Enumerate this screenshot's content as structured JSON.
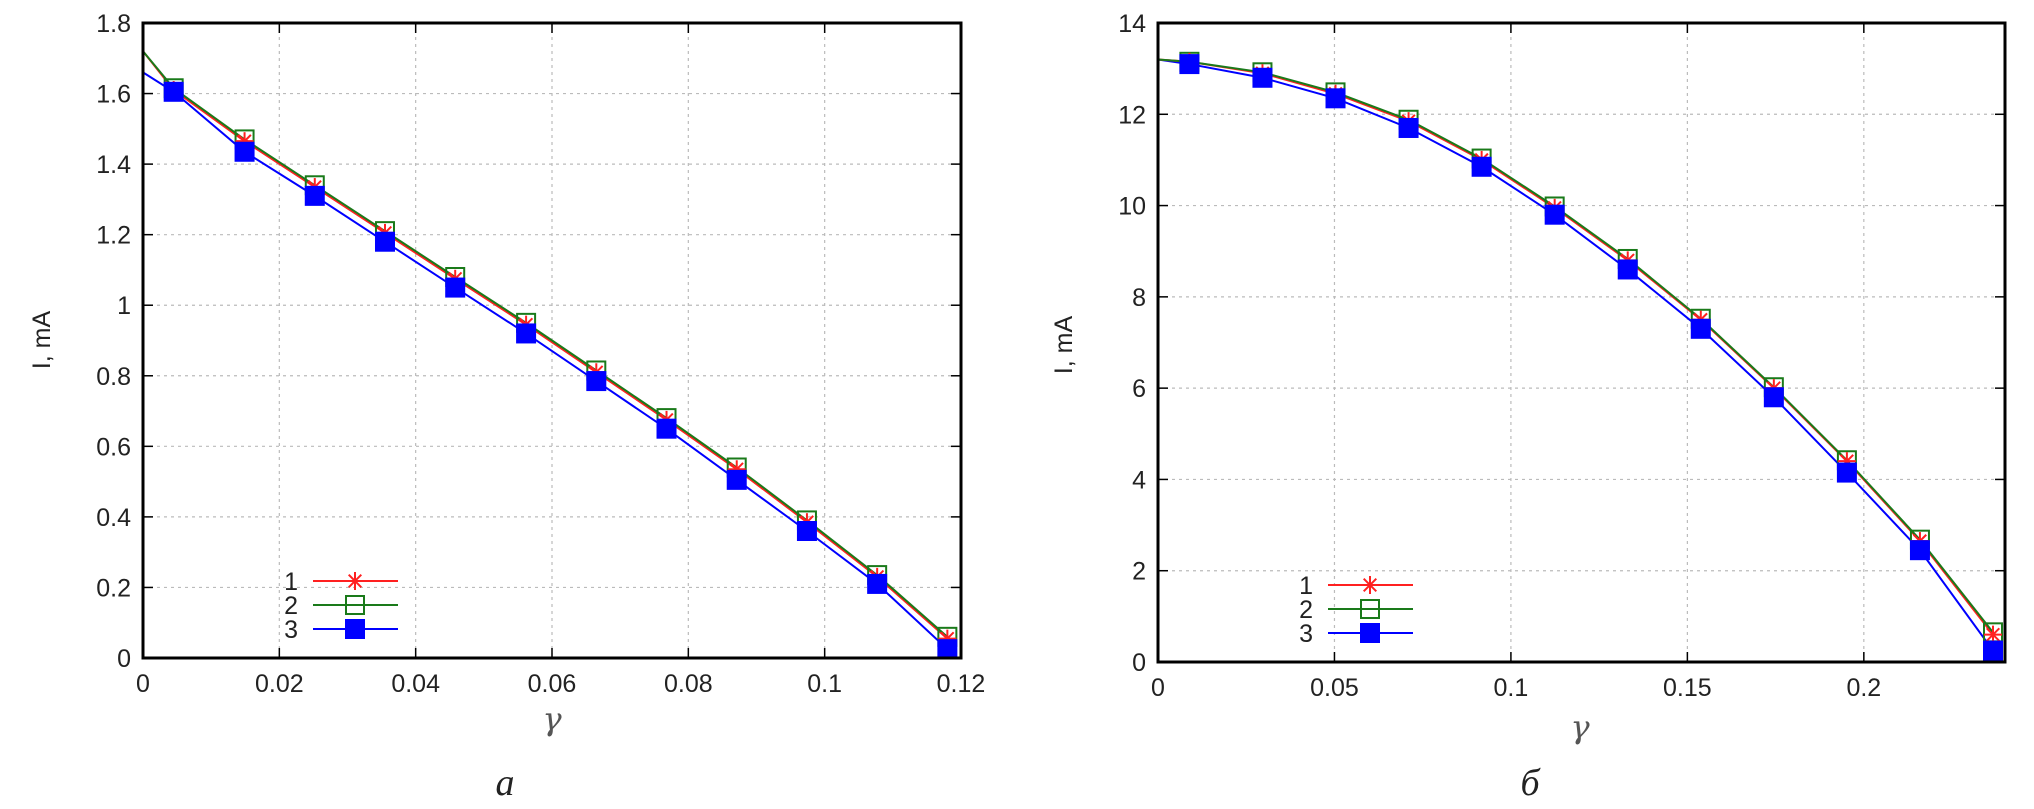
{
  "chart_data": [
    {
      "type": "line",
      "caption": "а",
      "xlabel": "γ",
      "ylabel": "I, mA",
      "xlim": [
        0,
        0.12
      ],
      "ylim": [
        0,
        1.8
      ],
      "xticks": [
        "0",
        "0.02",
        "0.04",
        "0.06",
        "0.08",
        "0.1",
        "0.12"
      ],
      "xtick_values": [
        0,
        0.02,
        0.04,
        0.06,
        0.08,
        0.1,
        0.12
      ],
      "yticks": [
        "0",
        "0.2",
        "0.4",
        "0.6",
        "0.8",
        "1",
        "1.2",
        "1.4",
        "1.6",
        "1.8"
      ],
      "ytick_values": [
        0,
        0.2,
        0.4,
        0.6,
        0.8,
        1,
        1.2,
        1.4,
        1.6,
        1.8
      ],
      "grid": true,
      "legend": "bottom-left",
      "x": [
        0.0045,
        0.0149,
        0.0252,
        0.0355,
        0.0458,
        0.0562,
        0.0665,
        0.0768,
        0.0871,
        0.0974,
        0.1077,
        0.118
      ],
      "series": [
        {
          "name": "1",
          "marker": "asterisk",
          "color": "#ff2020",
          "curve_start": 1.72,
          "values": [
            1.61,
            1.465,
            1.335,
            1.205,
            1.075,
            0.945,
            0.81,
            0.675,
            0.535,
            0.385,
            0.23,
            0.055
          ]
        },
        {
          "name": "2",
          "marker": "open-square",
          "color": "#1a7a1a",
          "curve_start": 1.72,
          "values": [
            1.615,
            1.47,
            1.34,
            1.21,
            1.08,
            0.95,
            0.815,
            0.68,
            0.54,
            0.39,
            0.235,
            0.06
          ]
        },
        {
          "name": "3",
          "marker": "filled-square",
          "color": "#0000ff",
          "curve_start": 1.66,
          "values": [
            1.605,
            1.435,
            1.31,
            1.18,
            1.05,
            0.92,
            0.785,
            0.65,
            0.505,
            0.36,
            0.21,
            0.025
          ]
        }
      ]
    },
    {
      "type": "line",
      "caption": "б",
      "xlabel": "γ",
      "ylabel": "I, mA",
      "xlim": [
        0,
        0.24
      ],
      "ylim": [
        0,
        14
      ],
      "xticks": [
        "0",
        "0.05",
        "0.1",
        "0.15",
        "0.2"
      ],
      "xtick_values": [
        0,
        0.05,
        0.1,
        0.15,
        0.2
      ],
      "yticks": [
        "0",
        "2",
        "4",
        "6",
        "8",
        "10",
        "12",
        "14"
      ],
      "ytick_values": [
        0,
        2,
        4,
        6,
        8,
        10,
        12,
        14
      ],
      "grid": true,
      "legend": "bottom-left",
      "x": [
        0.0089,
        0.0296,
        0.0503,
        0.071,
        0.0917,
        0.1124,
        0.1331,
        0.1538,
        0.1745,
        0.1952,
        0.2159,
        0.2366
      ],
      "series": [
        {
          "name": "1",
          "marker": "asterisk",
          "color": "#ff2020",
          "curve_start": 13.2,
          "values": [
            13.15,
            12.9,
            12.45,
            11.85,
            11.0,
            9.95,
            8.8,
            7.5,
            6.0,
            4.4,
            2.65,
            0.6
          ]
        },
        {
          "name": "2",
          "marker": "open-square",
          "color": "#1a7a1a",
          "curve_start": 13.2,
          "values": [
            13.15,
            12.92,
            12.48,
            11.88,
            11.03,
            9.98,
            8.83,
            7.52,
            6.02,
            4.42,
            2.68,
            0.65
          ]
        },
        {
          "name": "3",
          "marker": "filled-square",
          "color": "#0000ff",
          "curve_start": 13.2,
          "values": [
            13.1,
            12.8,
            12.35,
            11.7,
            10.85,
            9.8,
            8.6,
            7.3,
            5.8,
            4.15,
            2.45,
            0.25
          ]
        }
      ]
    }
  ]
}
